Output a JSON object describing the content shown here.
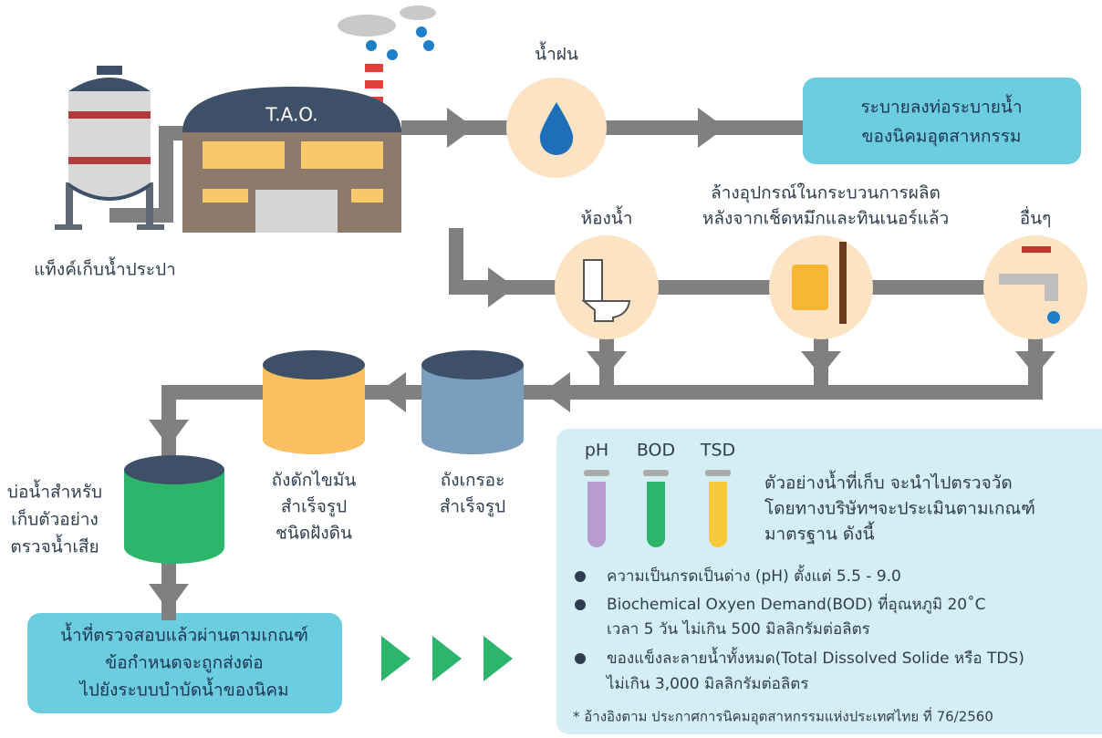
{
  "factory": {
    "label": "T.A.O."
  },
  "water_tank": {
    "label": "แท็งค์เก็บน้ำประปา"
  },
  "rain": {
    "label": "น้ำฝน"
  },
  "drain": {
    "lines": [
      "ระบายลงท่อระบายน้ำ",
      "ของนิคมอุตสาหกรรม"
    ]
  },
  "sources": [
    {
      "lines": [
        "ห้องน้ำ"
      ]
    },
    {
      "lines": [
        "ล้างอุปกรณ์ในกระบวนการผลิต",
        "หลังจากเช็ดหมึกและทินเนอร์แล้ว"
      ]
    },
    {
      "lines": [
        "อื่นๆ"
      ]
    }
  ],
  "grease_trap": {
    "lines": [
      "ถังดักไขมัน",
      "สำเร็จรูป",
      "ชนิดฝังดิน"
    ]
  },
  "septic_tank": {
    "lines": [
      "ถังเกรอะ",
      "สำเร็จรูป"
    ]
  },
  "sample_pond": {
    "lines": [
      "บ่อน้ำสำหรับ",
      "เก็บตัวอย่าง",
      "ตรวจน้ำเสีย"
    ]
  },
  "result_box": {
    "lines": [
      "น้ำที่ตรวจสอบแล้วผ่านตามเกณฑ์",
      "ข้อกำหนดจะถูกส่งต่อ",
      "ไปยังระบบบำบัดน้ำของนิคม"
    ]
  },
  "tests": {
    "tubes": [
      "pH",
      "BOD",
      "TSD"
    ],
    "intro": [
      "ตัวอย่างน้ำที่เก็บ จะนำไปตรวจวัด",
      "โดยทางบริษัทฯจะประเมินตามเกณฑ์",
      "มาตรฐาน ดังนี้"
    ],
    "criteria": [
      [
        "ความเป็นกรดเป็นด่าง (pH) ตั้งแต่ 5.5 - 9.0"
      ],
      [
        "Biochemical Oxyen Demand(BOD) ที่อุณหภูมิ 20˚C",
        "เวลา 5 วัน ไม่เกิน 500 มิลลิกรัมต่อลิตร"
      ],
      [
        "ของแข็งละลายน้ำทั้งหมด(Total Dissolved Solide หรือ TDS)",
        "ไม่เกิน 3,000 มิลลิกรัมต่อลิตร"
      ]
    ],
    "footnote": "* อ้างอิงตาม ประกาศการนิคมอุตสาหกรรมแห่งประเทศไทย ที่ 76/2560"
  }
}
